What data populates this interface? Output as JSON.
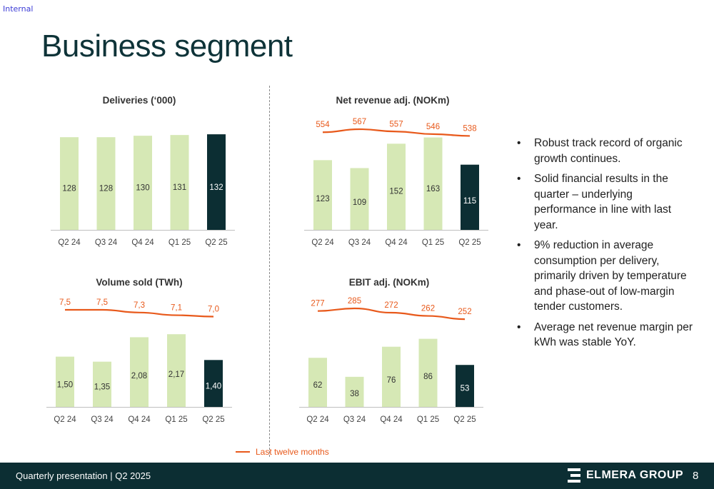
{
  "header": {
    "tag": "Internal",
    "title": "Business segment"
  },
  "colors": {
    "bar_light": "#d6e8b5",
    "bar_dark": "#0c2e33",
    "ltm_line": "#e8591b",
    "footer_bg": "#0c2e33"
  },
  "chart_data": [
    {
      "type": "bar",
      "title": "Deliveries (‘000)",
      "categories": [
        "Q2 24",
        "Q3 24",
        "Q4 24",
        "Q1 25",
        "Q2 25"
      ],
      "values": [
        128,
        128,
        130,
        131,
        132
      ],
      "value_labels": [
        "128",
        "128",
        "130",
        "131",
        "132"
      ],
      "ylim": [
        0,
        140
      ],
      "ltm": null
    },
    {
      "type": "bar",
      "title": "Net revenue adj. (NOKm)",
      "categories": [
        "Q2 24",
        "Q3 24",
        "Q4 24",
        "Q1 25",
        "Q2 25"
      ],
      "values": [
        123,
        109,
        152,
        163,
        115
      ],
      "value_labels": [
        "123",
        "109",
        "152",
        "163",
        "115"
      ],
      "ylim": [
        0,
        170
      ],
      "ltm": {
        "name": "Last twelve months",
        "values": [
          554,
          567,
          557,
          546,
          538
        ],
        "labels": [
          "554",
          "567",
          "557",
          "546",
          "538"
        ],
        "ylim": [
          0,
          580
        ]
      }
    },
    {
      "type": "bar",
      "title": "Volume sold (TWh)",
      "categories": [
        "Q2 24",
        "Q3 24",
        "Q4 24",
        "Q1 25",
        "Q2 25"
      ],
      "values": [
        1.5,
        1.35,
        2.08,
        2.17,
        1.4
      ],
      "value_labels": [
        "1,50",
        "1,35",
        "2,08",
        "2,17",
        "1,40"
      ],
      "ylim": [
        0,
        2.6
      ],
      "ltm": {
        "name": "Last twelve months",
        "values": [
          7.5,
          7.5,
          7.3,
          7.1,
          7.0
        ],
        "labels": [
          "7,5",
          "7,5",
          "7,3",
          "7,1",
          "7,0"
        ],
        "ylim": [
          0,
          7.7
        ]
      }
    },
    {
      "type": "bar",
      "title": "EBIT adj. (NOKm)",
      "categories": [
        "Q2 24",
        "Q3 24",
        "Q4 24",
        "Q1 25",
        "Q2 25"
      ],
      "values": [
        62,
        38,
        76,
        86,
        53
      ],
      "value_labels": [
        "62",
        "38",
        "76",
        "86",
        "53"
      ],
      "ylim": [
        0,
        110
      ],
      "ltm": {
        "name": "Last twelve months",
        "values": [
          277,
          285,
          272,
          262,
          252
        ],
        "labels": [
          "277",
          "285",
          "272",
          "262",
          "252"
        ],
        "ylim": [
          0,
          292
        ]
      }
    }
  ],
  "bullets": [
    "Robust track record of organic growth continues.",
    "Solid financial results in the quarter – underlying performance in line with last year.",
    "9% reduction in average consumption per delivery, primarily driven by temperature and phase-out of low-margin tender customers.",
    "Average net revenue margin per kWh was stable YoY."
  ],
  "bullet_glyph": "•",
  "legend": {
    "label": "Last twelve months"
  },
  "footer": {
    "text": "Quarterly presentation | Q2 2025",
    "logo_text": "ELMERA GROUP",
    "page": "8",
    "logo_icon": "elmera-logo-icon"
  }
}
